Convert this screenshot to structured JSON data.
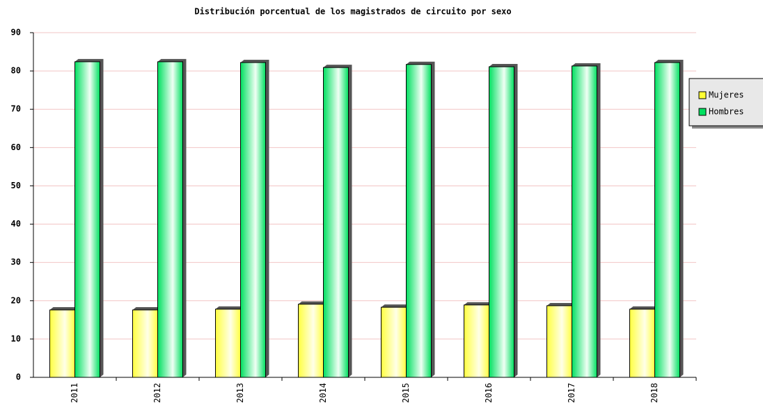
{
  "chart_data": {
    "type": "bar",
    "title": "Distribución porcentual de los magistrados de circuito por sexo",
    "categories": [
      "2011",
      "2012",
      "2013",
      "2014",
      "2015",
      "2016",
      "2017",
      "2018"
    ],
    "series": [
      {
        "name": "Mujeres",
        "color": "#ffff33",
        "values": [
          17.6,
          17.6,
          17.8,
          19.1,
          18.3,
          18.9,
          18.7,
          17.8
        ]
      },
      {
        "name": "Hombres",
        "color": "#00e060",
        "values": [
          82.4,
          82.4,
          82.2,
          80.9,
          81.7,
          81.1,
          81.3,
          82.2
        ]
      }
    ],
    "ylim": [
      0,
      90
    ],
    "yticks": [
      0,
      10,
      20,
      30,
      40,
      50,
      60,
      70,
      80,
      90
    ],
    "grid": true,
    "legend": "right"
  }
}
